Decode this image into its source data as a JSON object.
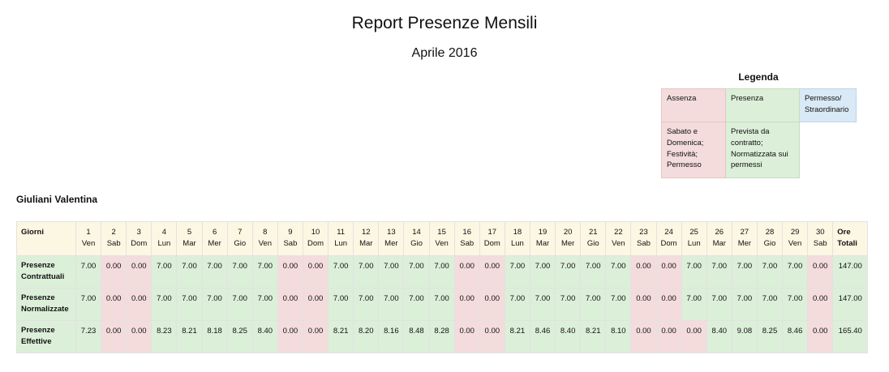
{
  "report": {
    "title": "Report Presenze Mensili",
    "month": "Aprile 2016"
  },
  "legend": {
    "title": "Legenda",
    "assenza": "Assenza",
    "presenza": "Presenza",
    "permesso_1": "Permesso/",
    "permesso_2": "Straordinario",
    "weekend_1": "Sabato e",
    "weekend_2": "Domenica;",
    "weekend_3": "Festività;",
    "weekend_4": "Permesso",
    "prevista_1": "Prevista da",
    "prevista_2": "contratto;",
    "prevista_3": "Normatizzata sui",
    "prevista_4": "permessi",
    "colors": {
      "red": "#f4dcdc",
      "green": "#dcefd9",
      "blue": "#d9e9f5",
      "header": "#fbf7e2"
    }
  },
  "employee": {
    "name": "Giuliani Valentina"
  },
  "table": {
    "header_label": "Giorni",
    "total_label_1": "Ore",
    "total_label_2": "Totali",
    "days": [
      {
        "num": "1",
        "name": "Ven"
      },
      {
        "num": "2",
        "name": "Sab"
      },
      {
        "num": "3",
        "name": "Dom"
      },
      {
        "num": "4",
        "name": "Lun"
      },
      {
        "num": "5",
        "name": "Mar"
      },
      {
        "num": "6",
        "name": "Mer"
      },
      {
        "num": "7",
        "name": "Gio"
      },
      {
        "num": "8",
        "name": "Ven"
      },
      {
        "num": "9",
        "name": "Sab"
      },
      {
        "num": "10",
        "name": "Dom"
      },
      {
        "num": "11",
        "name": "Lun"
      },
      {
        "num": "12",
        "name": "Mar"
      },
      {
        "num": "13",
        "name": "Mer"
      },
      {
        "num": "14",
        "name": "Gio"
      },
      {
        "num": "15",
        "name": "Ven"
      },
      {
        "num": "16",
        "name": "Sab"
      },
      {
        "num": "17",
        "name": "Dom"
      },
      {
        "num": "18",
        "name": "Lun"
      },
      {
        "num": "19",
        "name": "Mar"
      },
      {
        "num": "20",
        "name": "Mer"
      },
      {
        "num": "21",
        "name": "Gio"
      },
      {
        "num": "22",
        "name": "Ven"
      },
      {
        "num": "23",
        "name": "Sab"
      },
      {
        "num": "24",
        "name": "Dom"
      },
      {
        "num": "25",
        "name": "Lun"
      },
      {
        "num": "26",
        "name": "Mar"
      },
      {
        "num": "27",
        "name": "Mer"
      },
      {
        "num": "28",
        "name": "Gio"
      },
      {
        "num": "29",
        "name": "Ven"
      },
      {
        "num": "30",
        "name": "Sab"
      }
    ],
    "rows": [
      {
        "label_1": "Presenze",
        "label_2": "Contrattuali",
        "values": [
          "7.00",
          "0.00",
          "0.00",
          "7.00",
          "7.00",
          "7.00",
          "7.00",
          "7.00",
          "0.00",
          "0.00",
          "7.00",
          "7.00",
          "7.00",
          "7.00",
          "7.00",
          "0.00",
          "0.00",
          "7.00",
          "7.00",
          "7.00",
          "7.00",
          "7.00",
          "0.00",
          "0.00",
          "7.00",
          "7.00",
          "7.00",
          "7.00",
          "7.00",
          "0.00"
        ],
        "status": [
          "green",
          "red",
          "red",
          "green",
          "green",
          "green",
          "green",
          "green",
          "red",
          "red",
          "green",
          "green",
          "green",
          "green",
          "green",
          "red",
          "red",
          "green",
          "green",
          "green",
          "green",
          "green",
          "red",
          "red",
          "green",
          "green",
          "green",
          "green",
          "green",
          "red"
        ],
        "total": "147.00"
      },
      {
        "label_1": "Presenze",
        "label_2": "Normalizzate",
        "values": [
          "7.00",
          "0.00",
          "0.00",
          "7.00",
          "7.00",
          "7.00",
          "7.00",
          "7.00",
          "0.00",
          "0.00",
          "7.00",
          "7.00",
          "7.00",
          "7.00",
          "7.00",
          "0.00",
          "0.00",
          "7.00",
          "7.00",
          "7.00",
          "7.00",
          "7.00",
          "0.00",
          "0.00",
          "7.00",
          "7.00",
          "7.00",
          "7.00",
          "7.00",
          "0.00"
        ],
        "status": [
          "green",
          "red",
          "red",
          "green",
          "green",
          "green",
          "green",
          "green",
          "red",
          "red",
          "green",
          "green",
          "green",
          "green",
          "green",
          "red",
          "red",
          "green",
          "green",
          "green",
          "green",
          "green",
          "red",
          "red",
          "green",
          "green",
          "green",
          "green",
          "green",
          "red"
        ],
        "total": "147.00"
      },
      {
        "label_1": "Presenze",
        "label_2": "Effettive",
        "values": [
          "7.23",
          "0.00",
          "0.00",
          "8.23",
          "8.21",
          "8.18",
          "8.25",
          "8.40",
          "0.00",
          "0.00",
          "8.21",
          "8.20",
          "8.16",
          "8.48",
          "8.28",
          "0.00",
          "0.00",
          "8.21",
          "8.46",
          "8.40",
          "8.21",
          "8.10",
          "0.00",
          "0.00",
          "0.00",
          "8.40",
          "9.08",
          "8.25",
          "8.46",
          "0.00"
        ],
        "status": [
          "green",
          "red",
          "red",
          "green",
          "green",
          "green",
          "green",
          "green",
          "red",
          "red",
          "green",
          "green",
          "green",
          "green",
          "green",
          "red",
          "red",
          "green",
          "green",
          "green",
          "green",
          "green",
          "red",
          "red",
          "red",
          "green",
          "green",
          "green",
          "green",
          "red"
        ],
        "total": "165.40"
      }
    ]
  }
}
